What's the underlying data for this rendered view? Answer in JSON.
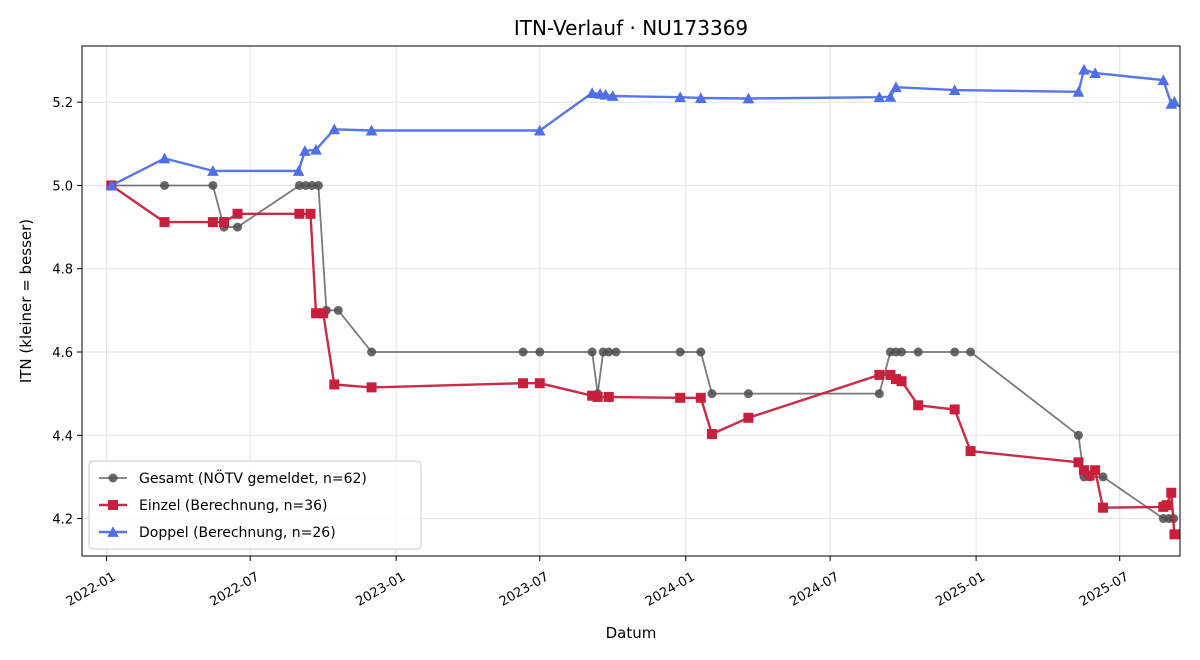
{
  "chart_data": {
    "type": "line",
    "title": "ITN-Verlauf · NU173369",
    "xlabel": "Datum",
    "ylabel": "ITN  (kleiner = besser)",
    "x_type": "date",
    "xlim": [
      "2021-12-01",
      "2025-09-15"
    ],
    "ylim": [
      4.11,
      5.335
    ],
    "x_ticks": [
      "2022-01",
      "2022-07",
      "2023-01",
      "2023-07",
      "2024-01",
      "2024-07",
      "2025-01",
      "2025-07"
    ],
    "y_ticks": [
      4.2,
      4.4,
      4.6,
      4.8,
      5.0,
      5.2
    ],
    "y_tick_labels": [
      "4.2",
      "4.4",
      "4.6",
      "4.8",
      "5.0",
      "5.2"
    ],
    "grid": true,
    "legend_position": "lower-left",
    "series": [
      {
        "name": "Gesamt (NÖTV gemeldet, n=62)",
        "color": "#4d4d4d",
        "marker": "circle",
        "points": [
          [
            "2022-01-07",
            5.0
          ],
          [
            "2022-03-15",
            5.0
          ],
          [
            "2022-05-15",
            5.0
          ],
          [
            "2022-05-29",
            4.9
          ],
          [
            "2022-06-15",
            4.9
          ],
          [
            "2022-09-01",
            5.0
          ],
          [
            "2022-09-09",
            5.0
          ],
          [
            "2022-09-17",
            5.0
          ],
          [
            "2022-09-25",
            5.0
          ],
          [
            "2022-10-05",
            4.7
          ],
          [
            "2022-10-20",
            4.7
          ],
          [
            "2022-12-01",
            4.6
          ],
          [
            "2023-06-10",
            4.6
          ],
          [
            "2023-07-01",
            4.6
          ],
          [
            "2023-09-05",
            4.6
          ],
          [
            "2023-09-12",
            4.5
          ],
          [
            "2023-09-19",
            4.6
          ],
          [
            "2023-09-26",
            4.6
          ],
          [
            "2023-10-05",
            4.6
          ],
          [
            "2023-12-25",
            4.6
          ],
          [
            "2024-01-20",
            4.6
          ],
          [
            "2024-02-03",
            4.5
          ],
          [
            "2024-03-20",
            4.5
          ],
          [
            "2024-09-01",
            4.5
          ],
          [
            "2024-09-15",
            4.6
          ],
          [
            "2024-09-22",
            4.6
          ],
          [
            "2024-09-29",
            4.6
          ],
          [
            "2024-10-20",
            4.6
          ],
          [
            "2024-12-05",
            4.6
          ],
          [
            "2024-12-25",
            4.6
          ],
          [
            "2025-05-10",
            4.4
          ],
          [
            "2025-05-17",
            4.3
          ],
          [
            "2025-05-24",
            4.3
          ],
          [
            "2025-06-10",
            4.3
          ],
          [
            "2025-08-25",
            4.2
          ],
          [
            "2025-09-01",
            4.2
          ],
          [
            "2025-09-07",
            4.2
          ]
        ]
      },
      {
        "name": "Einzel (Berechnung, n=36)",
        "color": "#c8203c",
        "marker": "square",
        "points": [
          [
            "2022-01-07",
            5.0
          ],
          [
            "2022-03-15",
            4.912
          ],
          [
            "2022-05-15",
            4.912
          ],
          [
            "2022-05-29",
            4.912
          ],
          [
            "2022-06-15",
            4.932
          ],
          [
            "2022-09-01",
            4.932
          ],
          [
            "2022-09-15",
            4.932
          ],
          [
            "2022-09-22",
            4.693
          ],
          [
            "2022-10-01",
            4.693
          ],
          [
            "2022-10-15",
            4.522
          ],
          [
            "2022-12-01",
            4.515
          ],
          [
            "2023-06-10",
            4.525
          ],
          [
            "2023-07-01",
            4.525
          ],
          [
            "2023-09-05",
            4.495
          ],
          [
            "2023-09-12",
            4.492
          ],
          [
            "2023-09-26",
            4.492
          ],
          [
            "2023-12-25",
            4.49
          ],
          [
            "2024-01-20",
            4.49
          ],
          [
            "2024-02-03",
            4.403
          ],
          [
            "2024-03-20",
            4.442
          ],
          [
            "2024-09-01",
            4.545
          ],
          [
            "2024-09-15",
            4.545
          ],
          [
            "2024-09-22",
            4.535
          ],
          [
            "2024-09-29",
            4.53
          ],
          [
            "2024-10-20",
            4.472
          ],
          [
            "2024-12-05",
            4.462
          ],
          [
            "2024-12-25",
            4.362
          ],
          [
            "2025-05-10",
            4.335
          ],
          [
            "2025-05-17",
            4.316
          ],
          [
            "2025-05-24",
            4.303
          ],
          [
            "2025-05-31",
            4.316
          ],
          [
            "2025-06-10",
            4.226
          ],
          [
            "2025-08-25",
            4.228
          ],
          [
            "2025-08-29",
            4.232
          ],
          [
            "2025-09-04",
            4.262
          ],
          [
            "2025-09-08",
            4.162
          ]
        ]
      },
      {
        "name": "Doppel (Berechnung, n=26)",
        "color": "#4f6fe8",
        "marker": "triangle",
        "points": [
          [
            "2022-01-07",
            5.0
          ],
          [
            "2022-03-15",
            5.065
          ],
          [
            "2022-05-15",
            5.035
          ],
          [
            "2022-08-31",
            5.035
          ],
          [
            "2022-09-08",
            5.083
          ],
          [
            "2022-09-22",
            5.086
          ],
          [
            "2022-10-15",
            5.135
          ],
          [
            "2022-12-01",
            5.132
          ],
          [
            "2023-07-01",
            5.132
          ],
          [
            "2023-09-05",
            5.222
          ],
          [
            "2023-09-15",
            5.22
          ],
          [
            "2023-09-22",
            5.218
          ],
          [
            "2023-10-01",
            5.215
          ],
          [
            "2023-12-25",
            5.212
          ],
          [
            "2024-01-20",
            5.21
          ],
          [
            "2024-03-20",
            5.209
          ],
          [
            "2024-09-01",
            5.212
          ],
          [
            "2024-09-15",
            5.213
          ],
          [
            "2024-09-22",
            5.236
          ],
          [
            "2024-12-05",
            5.229
          ],
          [
            "2025-05-10",
            5.225
          ],
          [
            "2025-05-17",
            5.278
          ],
          [
            "2025-05-31",
            5.27
          ],
          [
            "2025-08-25",
            5.253
          ],
          [
            "2025-09-04",
            5.196
          ],
          [
            "2025-09-08",
            5.201
          ]
        ]
      }
    ]
  }
}
